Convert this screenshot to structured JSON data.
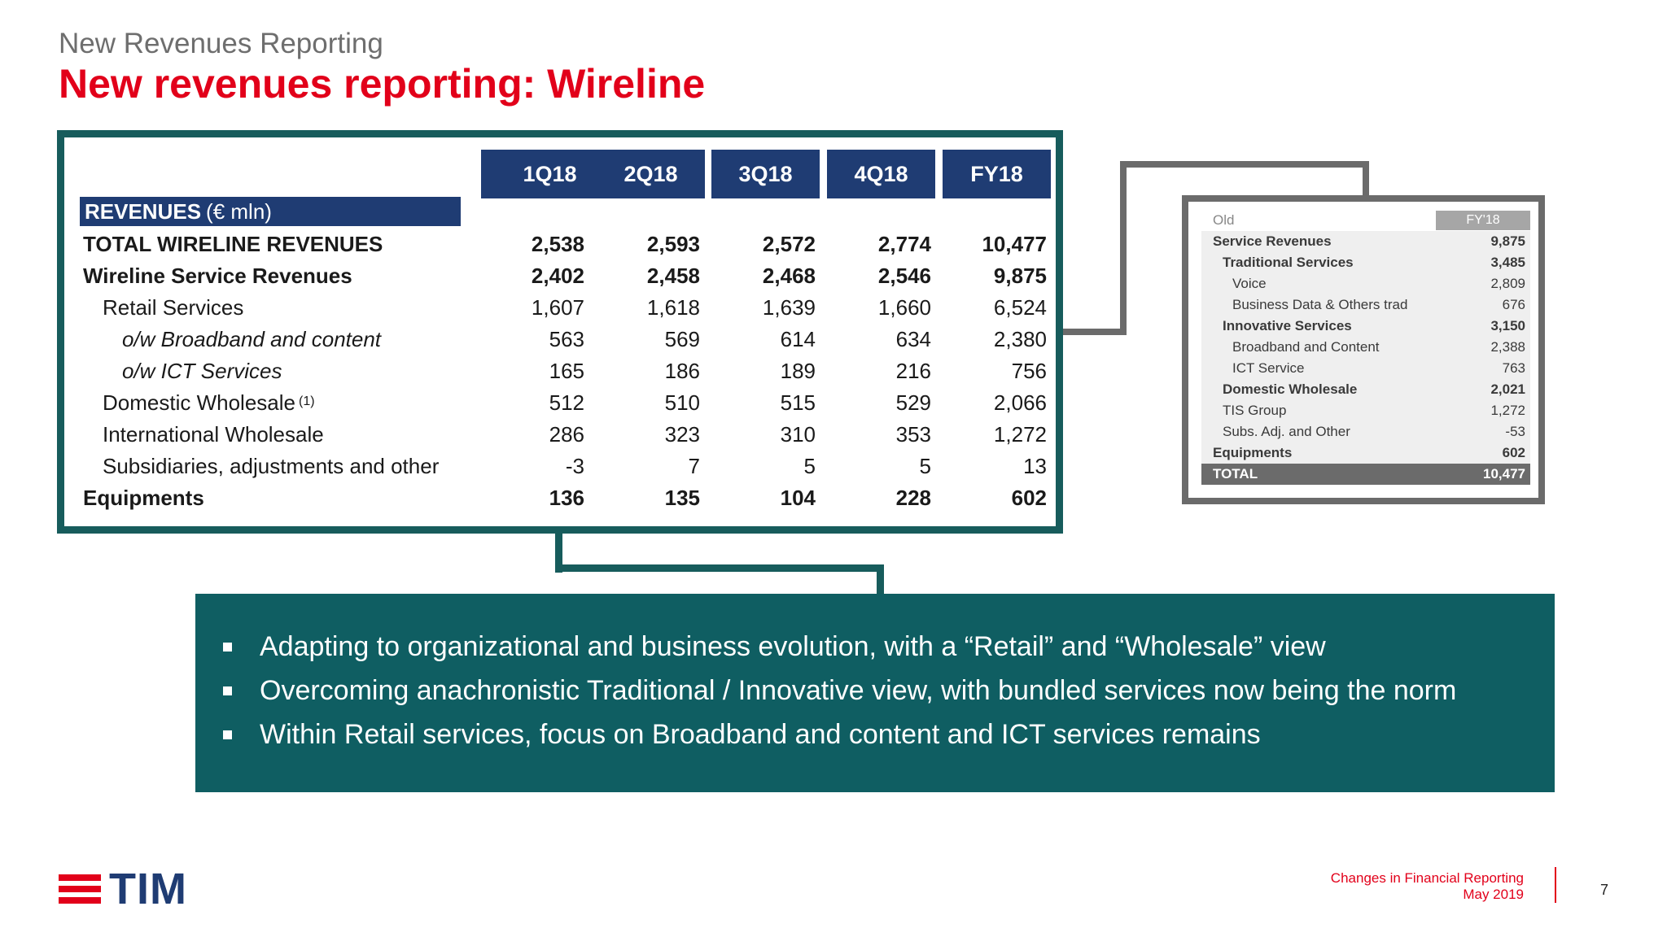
{
  "header": {
    "subtitle": "New Revenues Reporting",
    "title": "New revenues reporting: Wireline"
  },
  "main_table": {
    "columns": [
      "1Q18",
      "2Q18",
      "3Q18",
      "4Q18",
      "FY18"
    ],
    "section_label_bold": "REVENUES",
    "section_label_rest": "(€ mln)",
    "rows": [
      {
        "label": "TOTAL WIRELINE REVENUES",
        "values": [
          "2,538",
          "2,593",
          "2,572",
          "2,774",
          "10,477"
        ]
      },
      {
        "label": "Wireline Service Revenues",
        "values": [
          "2,402",
          "2,458",
          "2,468",
          "2,546",
          "9,875"
        ]
      },
      {
        "label": "Retail Services",
        "values": [
          "1,607",
          "1,618",
          "1,639",
          "1,660",
          "6,524"
        ]
      },
      {
        "label": "o/w Broadband and content",
        "values": [
          "563",
          "569",
          "614",
          "634",
          "2,380"
        ]
      },
      {
        "label": "o/w ICT Services",
        "values": [
          "165",
          "186",
          "189",
          "216",
          "756"
        ]
      },
      {
        "label": "Domestic Wholesale",
        "note": "(1)",
        "values": [
          "512",
          "510",
          "515",
          "529",
          "2,066"
        ]
      },
      {
        "label": "International Wholesale",
        "values": [
          "286",
          "323",
          "310",
          "353",
          "1,272"
        ]
      },
      {
        "label": "Subsidiaries, adjustments and other",
        "values": [
          "-3",
          "7",
          "5",
          "5",
          "13"
        ]
      },
      {
        "label": "Equipments",
        "values": [
          "136",
          "135",
          "104",
          "228",
          "602"
        ]
      }
    ]
  },
  "old_table": {
    "header_label": "Old",
    "header_col": "FY'18",
    "rows": [
      {
        "label": "Service Revenues",
        "value": "9,875"
      },
      {
        "label": "Traditional Services",
        "value": "3,485"
      },
      {
        "label": "Voice",
        "value": "2,809"
      },
      {
        "label": "Business Data & Others trad",
        "value": "676"
      },
      {
        "label": "Innovative Services",
        "value": "3,150"
      },
      {
        "label": "Broadband and Content",
        "value": "2,388"
      },
      {
        "label": "ICT Service",
        "value": "763"
      },
      {
        "label": "Domestic Wholesale",
        "value": "2,021"
      },
      {
        "label": "TIS Group",
        "value": "1,272"
      },
      {
        "label": "Subs. Adj. and Other",
        "value": "-53"
      },
      {
        "label": "Equipments",
        "value": "602"
      },
      {
        "label": "TOTAL",
        "value": "10,477"
      }
    ]
  },
  "bullets": [
    "Adapting to organizational and business evolution, with a “Retail” and “Wholesale” view",
    "Overcoming anachronistic Traditional / Innovative view, with bundled services now being the norm",
    "Within Retail services, focus on Broadband and content and ICT services remains"
  ],
  "footer": {
    "logo_text": "TIM",
    "line1": "Changes in Financial Reporting",
    "line2": "May 2019",
    "page": "7"
  },
  "colors": {
    "accent_red": "#e2001a",
    "navy": "#1f3c73",
    "teal": "#0f5e62",
    "frame_teal": "#175c5c",
    "grey": "#6b6b6b"
  }
}
